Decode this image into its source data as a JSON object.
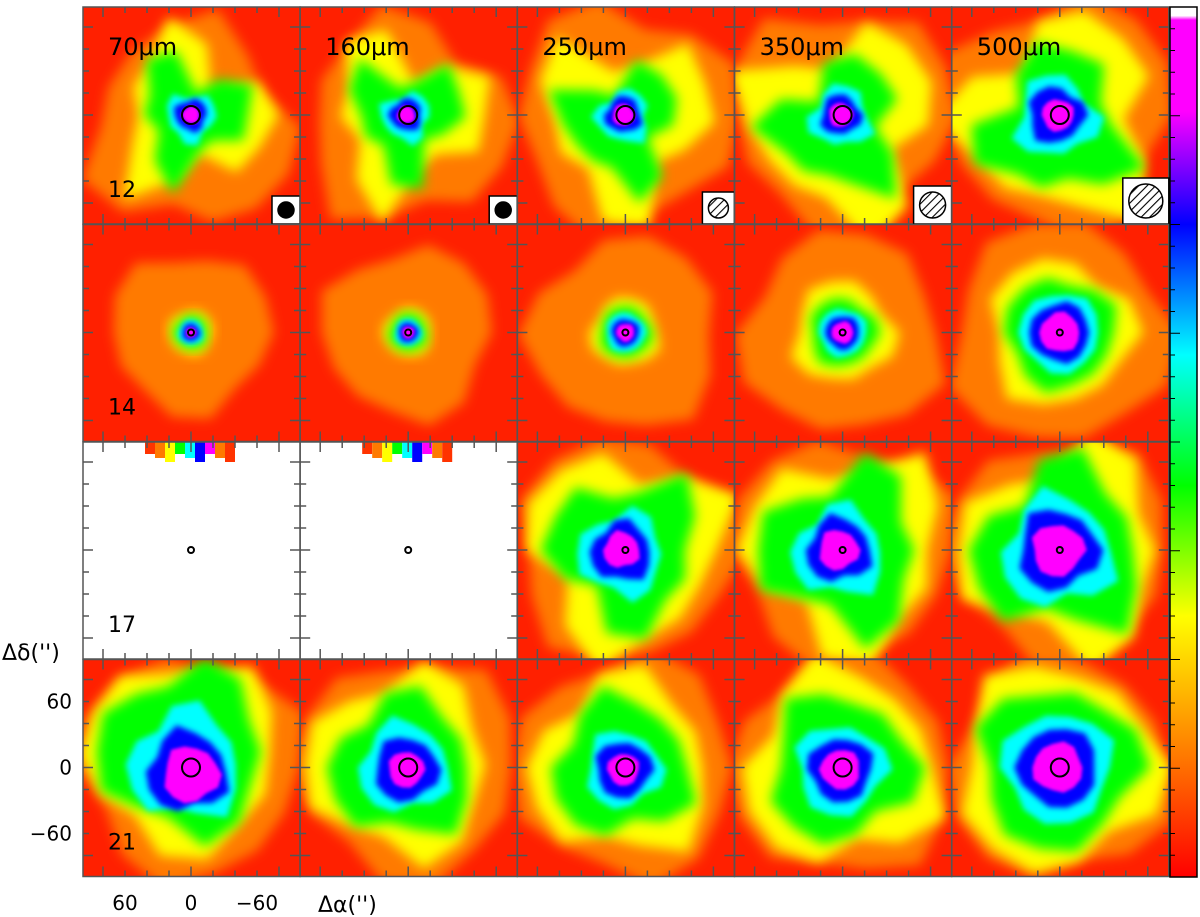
{
  "figure": {
    "wavelengths": [
      "70μm",
      "160μm",
      "250μm",
      "350μm",
      "500μm"
    ],
    "sources": [
      "12",
      "14",
      "17",
      "21"
    ],
    "axes": {
      "x_title": "Δα('')",
      "y_title": "Δδ('')",
      "x_ticks": [
        "60",
        "0",
        "−60"
      ],
      "y_ticks": [
        "60",
        "0",
        "−60"
      ]
    },
    "colormap": [
      "#ff0000",
      "#ff7a00",
      "#ffff00",
      "#00ff00",
      "#00ffff",
      "#0000ff",
      "#ff00ff",
      "#ffffff"
    ]
  },
  "chart_data": {
    "type": "heatmap",
    "grid": {
      "rows": 4,
      "cols": 5
    },
    "x_axis": {
      "label": "Δα('')",
      "ticks": [
        60,
        0,
        -60
      ],
      "lim": [
        90,
        -90
      ]
    },
    "y_axis": {
      "label": "Δδ('')",
      "ticks": [
        60,
        0,
        -60
      ],
      "lim": [
        -90,
        90
      ]
    },
    "columns": [
      "70μm",
      "160μm",
      "250μm",
      "350μm",
      "500μm"
    ],
    "rows": [
      "12",
      "14",
      "17",
      "21"
    ],
    "missing_panels": [
      [
        2,
        0
      ],
      [
        2,
        1
      ]
    ],
    "colorbar": {
      "orientation": "vertical",
      "placement": "right",
      "colors": [
        "#ff0000",
        "#ff7a00",
        "#ffff00",
        "#00ff00",
        "#00ffff",
        "#0000ff",
        "#ff00ff",
        "#ffffff"
      ]
    }
  }
}
